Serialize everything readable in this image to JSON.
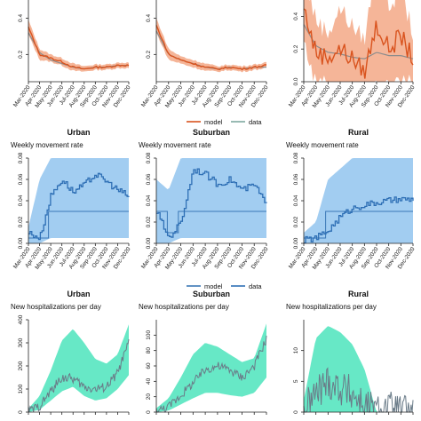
{
  "colors": {
    "model_orange": "#d9531e",
    "model_band_orange": "#f2a27e",
    "data_teal": "#7fa9a0",
    "data_gray": "#8c8c8c",
    "model_blue": "#2e6fb5",
    "model_band_blue": "#92c4ef",
    "data_steelblue": "#3b78b6",
    "hosp_band": "#67e8c6",
    "hosp_line": "#6a7b88"
  },
  "legends": {
    "row1": [
      {
        "label": "model",
        "color": "#d9531e"
      },
      {
        "label": "data",
        "color": "#7fa9a0"
      }
    ],
    "row2": [
      {
        "label": "model",
        "color": "#3b78b6"
      },
      {
        "label": "data",
        "color": "#2e6fb5"
      }
    ]
  },
  "chart_data": [
    {
      "type": "line",
      "panel": "row1-urban",
      "title": "",
      "subtitle": "",
      "xlabel": "",
      "ylabel": "",
      "x": [
        "Mar-2020",
        "Apr-2020",
        "May-2020",
        "Jun-2020",
        "Jul-2020",
        "Aug-2020",
        "Sep-2020",
        "Oct-2020",
        "Nov-2020",
        "Dec-2020"
      ],
      "ylim": [
        0.05,
        0.5
      ],
      "yticks": [
        "0.2",
        "0.4"
      ],
      "series": [
        {
          "name": "model",
          "values": [
            0.35,
            0.2,
            0.18,
            0.16,
            0.13,
            0.12,
            0.13,
            0.13,
            0.14,
            0.14
          ],
          "band": [
            0.04,
            0.03,
            0.02,
            0.02,
            0.02,
            0.015,
            0.015,
            0.015,
            0.015,
            0.015
          ]
        },
        {
          "name": "data",
          "values": [
            0.32,
            0.21,
            0.17,
            0.15,
            0.13,
            0.12,
            0.13,
            0.13,
            0.14,
            0.14
          ]
        }
      ]
    },
    {
      "type": "line",
      "panel": "row1-suburban",
      "title": "",
      "subtitle": "",
      "xlabel": "",
      "ylabel": "",
      "x": [
        "Mar-2020",
        "Apr-2020",
        "May-2020",
        "Jun-2020",
        "Jul-2020",
        "Aug-2020",
        "Sep-2020",
        "Oct-2020",
        "Nov-2020",
        "Dec-2020"
      ],
      "ylim": [
        0.05,
        0.5
      ],
      "yticks": [
        "0.2",
        "0.4"
      ],
      "series": [
        {
          "name": "model",
          "values": [
            0.36,
            0.2,
            0.17,
            0.15,
            0.13,
            0.12,
            0.13,
            0.12,
            0.13,
            0.14
          ],
          "band": [
            0.04,
            0.03,
            0.02,
            0.02,
            0.02,
            0.015,
            0.015,
            0.015,
            0.015,
            0.015
          ]
        },
        {
          "name": "data",
          "values": [
            0.33,
            0.2,
            0.17,
            0.15,
            0.13,
            0.12,
            0.13,
            0.12,
            0.13,
            0.13
          ]
        }
      ]
    },
    {
      "type": "line",
      "panel": "row1-rural",
      "title": "",
      "subtitle": "",
      "xlabel": "",
      "ylabel": "",
      "x": [
        "Mar-2020",
        "Apr-2020",
        "May-2020",
        "Jun-2020",
        "Jul-2020",
        "Aug-2020",
        "Sep-2020",
        "Oct-2020",
        "Nov-2020",
        "Dec-2020"
      ],
      "ylim": [
        0.0,
        0.5
      ],
      "yticks": [
        "0.0",
        "0.2",
        "0.4"
      ],
      "series": [
        {
          "name": "model",
          "values": [
            0.45,
            0.18,
            0.15,
            0.2,
            0.14,
            0.06,
            0.35,
            0.2,
            0.28,
            0.14
          ],
          "band": [
            0.08,
            0.08,
            0.06,
            0.1,
            0.08,
            0.08,
            0.15,
            0.1,
            0.12,
            0.06
          ]
        },
        {
          "name": "data",
          "values": [
            0.35,
            0.22,
            0.18,
            0.17,
            0.15,
            0.14,
            0.18,
            0.16,
            0.16,
            0.14
          ]
        }
      ]
    },
    {
      "type": "line",
      "panel": "row2-urban",
      "title": "Urban",
      "subtitle": "Weekly movement rate",
      "xlabel": "",
      "ylabel": "",
      "x": [
        "Mar-2020",
        "Apr-2020",
        "May-2020",
        "Jun-2020",
        "Jul-2020",
        "Aug-2020",
        "Sep-2020",
        "Oct-2020",
        "Nov-2020",
        "Dec-2020"
      ],
      "ylim": [
        0,
        0.08
      ],
      "yticks": [
        "0.00",
        "0.02",
        "0.04",
        "0.06",
        "0.08"
      ],
      "series": [
        {
          "name": "model",
          "values": [
            0.005,
            0.005,
            0.03,
            0.03,
            0.03,
            0.03,
            0.03,
            0.03,
            0.03,
            0.03
          ],
          "band_low": [
            0.0,
            0.0,
            0.005,
            0.005,
            0.005,
            0.005,
            0.005,
            0.005,
            0.005,
            0.005
          ],
          "band_high": [
            0.015,
            0.06,
            0.08,
            0.08,
            0.08,
            0.08,
            0.08,
            0.08,
            0.08,
            0.08
          ]
        },
        {
          "name": "data",
          "values": [
            0.01,
            0.005,
            0.045,
            0.06,
            0.048,
            0.055,
            0.065,
            0.058,
            0.05,
            0.044
          ]
        }
      ]
    },
    {
      "type": "line",
      "panel": "row2-suburban",
      "title": "Suburban",
      "subtitle": "Weekly movement rate",
      "xlabel": "",
      "ylabel": "",
      "x": [
        "Mar-2020",
        "Apr-2020",
        "May-2020",
        "Jun-2020",
        "Jul-2020",
        "Aug-2020",
        "Sep-2020",
        "Oct-2020",
        "Nov-2020",
        "Dec-2020"
      ],
      "ylim": [
        0,
        0.08
      ],
      "yticks": [
        "0.00",
        "0.02",
        "0.04",
        "0.06",
        "0.08"
      ],
      "series": [
        {
          "name": "model",
          "values": [
            0.03,
            0.01,
            0.03,
            0.03,
            0.03,
            0.03,
            0.03,
            0.03,
            0.03,
            0.03
          ],
          "band_low": [
            0.0,
            0.0,
            0.005,
            0.005,
            0.005,
            0.005,
            0.005,
            0.005,
            0.005,
            0.005
          ],
          "band_high": [
            0.06,
            0.05,
            0.08,
            0.08,
            0.08,
            0.08,
            0.08,
            0.08,
            0.08,
            0.08
          ]
        },
        {
          "name": "data",
          "values": [
            0.03,
            0.005,
            0.02,
            0.07,
            0.065,
            0.055,
            0.06,
            0.05,
            0.055,
            0.035
          ]
        }
      ]
    },
    {
      "type": "line",
      "panel": "row2-rural",
      "title": "Rural",
      "subtitle": "Weekly movement rate",
      "xlabel": "",
      "ylabel": "",
      "x": [
        "Mar-2020",
        "Apr-2020",
        "May-2020",
        "Jun-2020",
        "Jul-2020",
        "Aug-2020",
        "Sep-2020",
        "Oct-2020",
        "Nov-2020",
        "Dec-2020"
      ],
      "ylim": [
        0,
        0.08
      ],
      "yticks": [
        "0.00",
        "0.02",
        "0.04",
        "0.06",
        "0.08"
      ],
      "series": [
        {
          "name": "model",
          "values": [
            0.005,
            0.005,
            0.03,
            0.03,
            0.03,
            0.03,
            0.03,
            0.03,
            0.03,
            0.03
          ],
          "band_low": [
            0.0,
            0.0,
            0.0,
            0.0,
            0.0,
            0.0,
            0.0,
            0.0,
            0.0,
            0.0
          ],
          "band_high": [
            0.01,
            0.02,
            0.06,
            0.07,
            0.08,
            0.08,
            0.08,
            0.08,
            0.08,
            0.08
          ]
        },
        {
          "name": "data",
          "values": [
            0.003,
            0.005,
            0.012,
            0.025,
            0.033,
            0.036,
            0.038,
            0.04,
            0.041,
            0.041
          ]
        }
      ]
    },
    {
      "type": "area",
      "panel": "row3-urban",
      "title": "Urban",
      "subtitle": "New hospitalizations per day",
      "xlabel": "",
      "ylabel": "",
      "ylim": [
        0,
        400
      ],
      "yticks": [
        "0",
        "100",
        "200",
        "300",
        "400"
      ],
      "series": [
        {
          "name": "model",
          "values": [
            5,
            30,
            110,
            200,
            210,
            150,
            120,
            140,
            200,
            330
          ],
          "band_low": [
            0,
            10,
            50,
            90,
            110,
            70,
            50,
            60,
            100,
            160
          ],
          "band_high": [
            15,
            70,
            180,
            310,
            360,
            300,
            230,
            210,
            250,
            380
          ]
        },
        {
          "name": "data",
          "values": [
            5,
            25,
            90,
            150,
            145,
            110,
            100,
            110,
            170,
            300
          ]
        }
      ]
    },
    {
      "type": "area",
      "panel": "row3-suburban",
      "title": "Suburban",
      "subtitle": "New hospitalizations per day",
      "xlabel": "",
      "ylabel": "",
      "ylim": [
        0,
        120
      ],
      "yticks": [
        "0",
        "20",
        "40",
        "60",
        "80",
        "100"
      ],
      "series": [
        {
          "name": "model",
          "values": [
            1,
            8,
            25,
            40,
            55,
            55,
            50,
            45,
            55,
            95
          ],
          "band_low": [
            0,
            2,
            10,
            18,
            25,
            25,
            22,
            20,
            25,
            45
          ],
          "band_high": [
            5,
            18,
            45,
            75,
            90,
            85,
            75,
            65,
            70,
            115
          ]
        },
        {
          "name": "data",
          "values": [
            1,
            7,
            22,
            38,
            55,
            60,
            55,
            45,
            60,
            95
          ]
        }
      ]
    },
    {
      "type": "area",
      "panel": "row3-rural",
      "title": "Rural",
      "subtitle": "New hospitalizations per day",
      "xlabel": "",
      "ylabel": "",
      "ylim": [
        0,
        15
      ],
      "yticks": [
        "0",
        "5",
        "10"
      ],
      "series": [
        {
          "name": "model",
          "values": [
            0,
            4,
            6,
            5,
            4,
            2,
            0,
            0,
            0,
            0
          ],
          "band_low": [
            0,
            0,
            0,
            0,
            0,
            0,
            0,
            0,
            0,
            0
          ],
          "band_high": [
            2,
            12,
            14,
            13,
            11,
            7,
            0,
            0,
            0,
            0
          ]
        },
        {
          "name": "data",
          "values": [
            0,
            3,
            5,
            4,
            3,
            1,
            0,
            0.5,
            0,
            0
          ]
        }
      ]
    }
  ]
}
